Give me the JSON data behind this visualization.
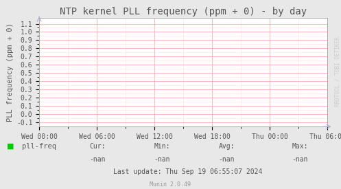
{
  "title": "NTP kernel PLL frequency (ppm + 0) - by day",
  "ylabel": "PLL frequency (ppm + 0)",
  "bg_color": "#e8e8e8",
  "plot_bg_color": "#ffffff",
  "grid_color_major": "#ffaaaa",
  "grid_color_minor": "#ffdddd",
  "yticks": [
    -0.1,
    0.0,
    0.1,
    0.2,
    0.3,
    0.4,
    0.5,
    0.6,
    0.7,
    0.8,
    0.9,
    1.0,
    1.1
  ],
  "ylim": [
    -0.15,
    1.17
  ],
  "xtick_labels": [
    "Wed 00:00",
    "Wed 06:00",
    "Wed 12:00",
    "Wed 18:00",
    "Thu 00:00",
    "Thu 06:00"
  ],
  "legend_color": "#00cc00",
  "legend_label": "pll-freq",
  "cur_val": "-nan",
  "min_val": "-nan",
  "avg_val": "-nan",
  "max_val": "-nan",
  "last_update": "Last update: Thu Sep 19 06:55:07 2024",
  "munin_version": "Munin 2.0.49",
  "watermark": "RRDTOOL / TOBI OETIKER",
  "title_fontsize": 10,
  "axis_label_fontsize": 7.5,
  "tick_fontsize": 7,
  "legend_fontsize": 7.5,
  "footer_fontsize": 7,
  "watermark_fontsize": 5.5,
  "spine_color": "#aaaaaa",
  "text_color": "#555555",
  "footer_text_color": "#555555",
  "munin_color": "#999999"
}
